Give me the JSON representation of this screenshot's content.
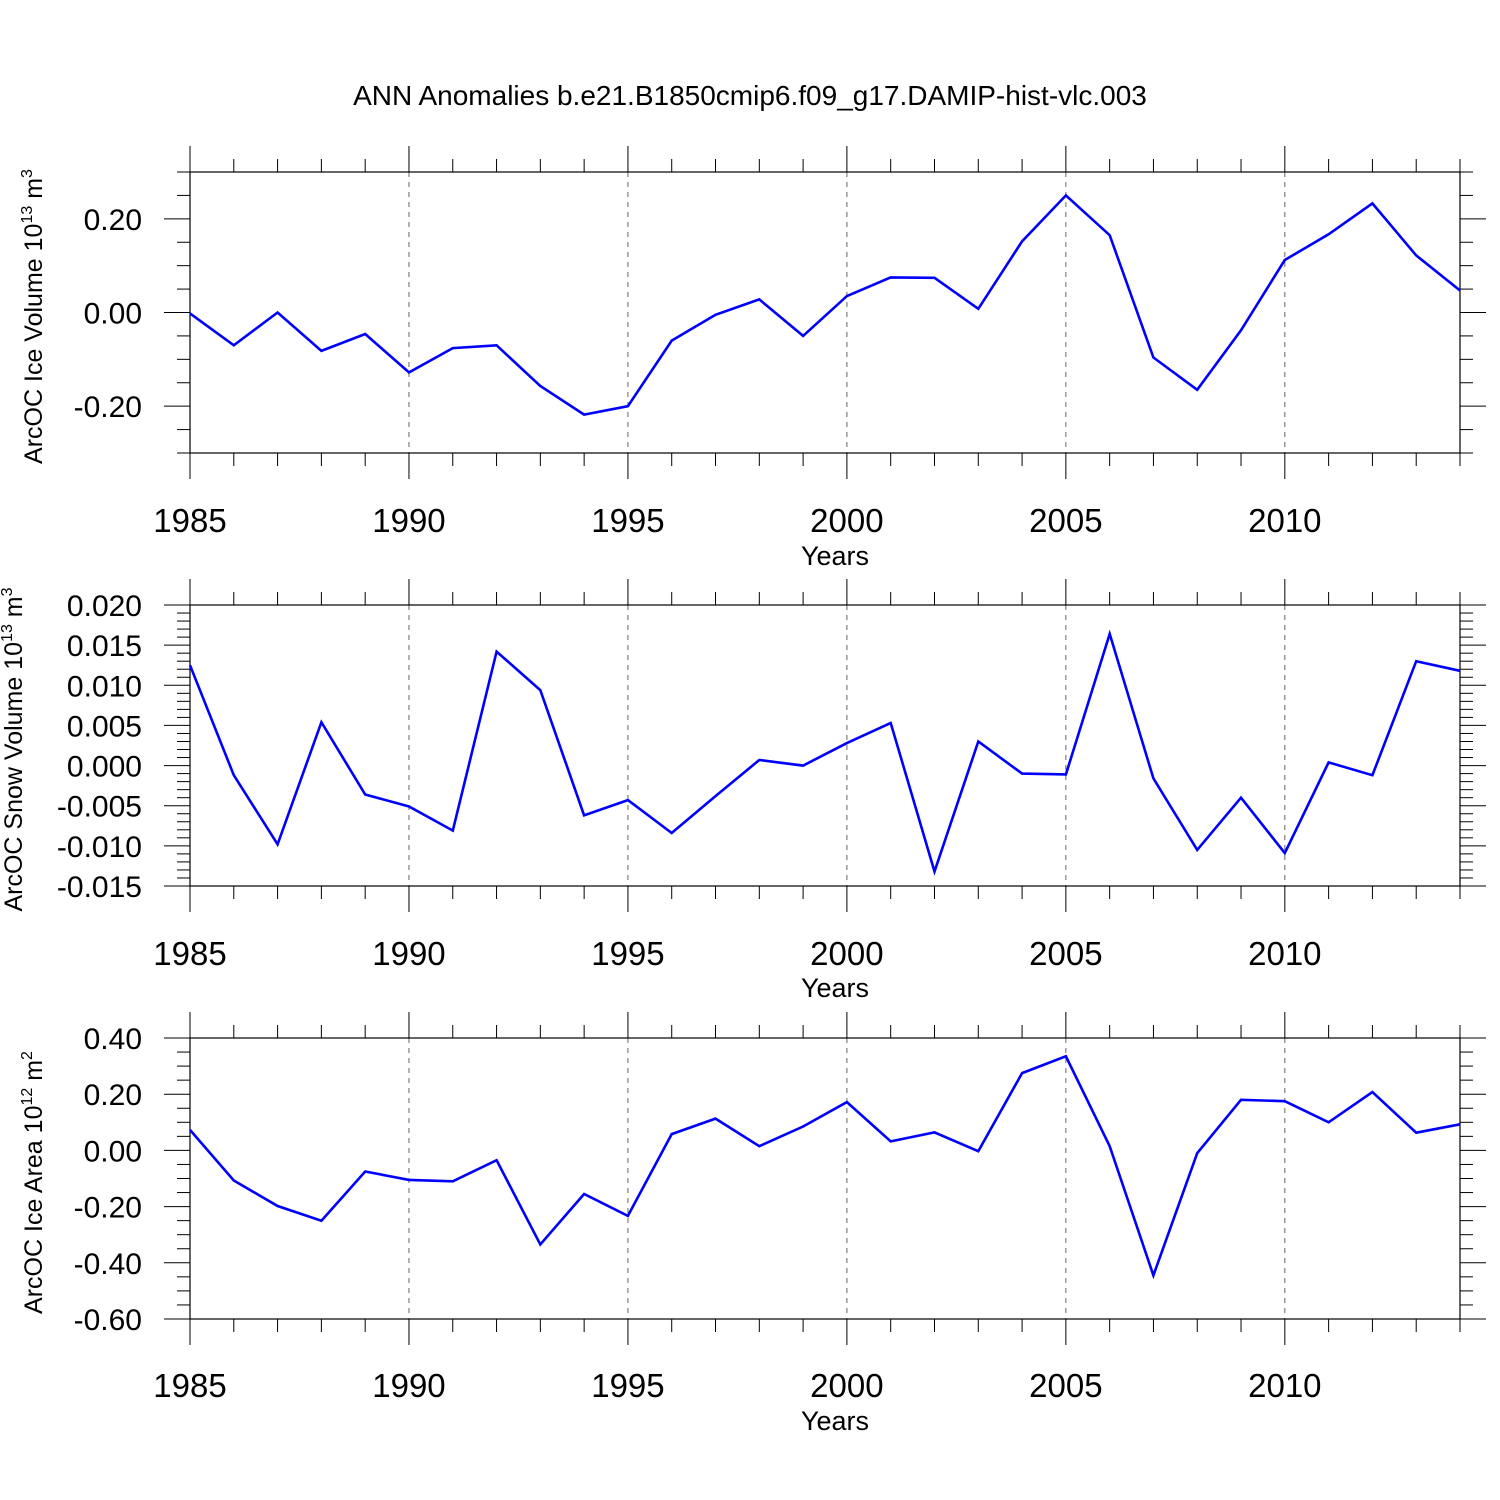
{
  "figure_title": "ANN Anomalies b.e21.B1850cmip6.f09_g17.DAMIP-hist-vlc.003",
  "colors": {
    "line": "#0000ff",
    "axis": "#000000",
    "grid": "#666666"
  },
  "chart_data": [
    {
      "type": "line",
      "ylabel_main": "ArcOC Ice Volume 10",
      "ylabel_exp": "13",
      "ylabel_unit": " m",
      "ylabel_unit_exp": "3",
      "xlabel": "Years",
      "xlim": [
        1985,
        2014
      ],
      "ylim": [
        -0.3,
        0.3
      ],
      "major_yticks": [
        -0.2,
        0.0,
        0.2
      ],
      "ytick_labels": [
        "-0.20",
        "0.00",
        "0.20"
      ],
      "xticks": [
        1985,
        1990,
        1995,
        2000,
        2005,
        2010
      ],
      "xtick_labels": [
        "1985",
        "1990",
        "1995",
        "2000",
        "2005",
        "2010"
      ],
      "grid": "vertical dashed at major x ticks",
      "x": [
        1985,
        1986,
        1987,
        1988,
        1989,
        1990,
        1991,
        1992,
        1993,
        1994,
        1995,
        1996,
        1997,
        1998,
        1999,
        2000,
        2001,
        2002,
        2003,
        2004,
        2005,
        2006,
        2007,
        2008,
        2009,
        2010,
        2011,
        2012,
        2013,
        2014
      ],
      "values": [
        -0.002,
        -0.07,
        0.0,
        -0.082,
        -0.046,
        -0.128,
        -0.076,
        -0.07,
        -0.157,
        -0.218,
        -0.2,
        -0.06,
        -0.005,
        0.028,
        -0.05,
        0.035,
        0.075,
        0.074,
        0.008,
        0.152,
        0.25,
        0.165,
        -0.096,
        -0.165,
        -0.038,
        0.112,
        0.167,
        0.233,
        0.122,
        0.047
      ]
    },
    {
      "type": "line",
      "ylabel_main": "ArcOC Snow Volume 10",
      "ylabel_exp": "13",
      "ylabel_unit": " m",
      "ylabel_unit_exp": "3",
      "xlabel": "Years",
      "xlim": [
        1985,
        2014
      ],
      "ylim": [
        -0.015,
        0.02
      ],
      "major_yticks": [
        -0.015,
        -0.01,
        -0.005,
        0.0,
        0.005,
        0.01,
        0.015,
        0.02
      ],
      "ytick_labels": [
        "-0.015",
        "-0.010",
        "-0.005",
        "0.000",
        "0.005",
        "0.010",
        "0.015",
        "0.020"
      ],
      "xticks": [
        1985,
        1990,
        1995,
        2000,
        2005,
        2010
      ],
      "xtick_labels": [
        "1985",
        "1990",
        "1995",
        "2000",
        "2005",
        "2010"
      ],
      "grid": "vertical dashed at major x ticks",
      "x": [
        1985,
        1986,
        1987,
        1988,
        1989,
        1990,
        1991,
        1992,
        1993,
        1994,
        1995,
        1996,
        1997,
        1998,
        1999,
        2000,
        2001,
        2002,
        2003,
        2004,
        2005,
        2006,
        2007,
        2008,
        2009,
        2010,
        2011,
        2012,
        2013,
        2014
      ],
      "values": [
        0.0125,
        -0.0012,
        -0.0098,
        0.0054,
        -0.0036,
        -0.0051,
        -0.0081,
        0.0142,
        0.0094,
        -0.0062,
        -0.0043,
        -0.0084,
        -0.0038,
        0.0007,
        0.0,
        0.0028,
        0.0053,
        -0.0132,
        0.003,
        -0.001,
        -0.0011,
        0.0164,
        -0.0016,
        -0.0105,
        -0.004,
        -0.0109,
        0.0004,
        -0.0012,
        0.013,
        0.0118
      ]
    },
    {
      "type": "line",
      "ylabel_main": "ArcOC Ice Area 10",
      "ylabel_exp": "12",
      "ylabel_unit": " m",
      "ylabel_unit_exp": "2",
      "xlabel": "Years",
      "xlim": [
        1985,
        2014
      ],
      "ylim": [
        -0.6,
        0.4
      ],
      "major_yticks": [
        -0.6,
        -0.4,
        -0.2,
        0.0,
        0.2,
        0.4
      ],
      "ytick_labels": [
        "-0.60",
        "-0.40",
        "-0.20",
        "0.00",
        "0.20",
        "0.40"
      ],
      "xticks": [
        1985,
        1990,
        1995,
        2000,
        2005,
        2010
      ],
      "xtick_labels": [
        "1985",
        "1990",
        "1995",
        "2000",
        "2005",
        "2010"
      ],
      "grid": "vertical dashed at major x ticks",
      "x": [
        1985,
        1986,
        1987,
        1988,
        1989,
        1990,
        1991,
        1992,
        1993,
        1994,
        1995,
        1996,
        1997,
        1998,
        1999,
        2000,
        2001,
        2002,
        2003,
        2004,
        2005,
        2006,
        2007,
        2008,
        2009,
        2010,
        2011,
        2012,
        2013,
        2014
      ],
      "values": [
        0.073,
        -0.107,
        -0.198,
        -0.25,
        -0.075,
        -0.105,
        -0.11,
        -0.035,
        -0.335,
        -0.155,
        -0.233,
        0.058,
        0.113,
        0.015,
        0.085,
        0.172,
        0.032,
        0.064,
        -0.003,
        0.275,
        0.335,
        0.015,
        -0.445,
        -0.01,
        0.18,
        0.175,
        0.1,
        0.208,
        0.063,
        0.093
      ]
    }
  ]
}
